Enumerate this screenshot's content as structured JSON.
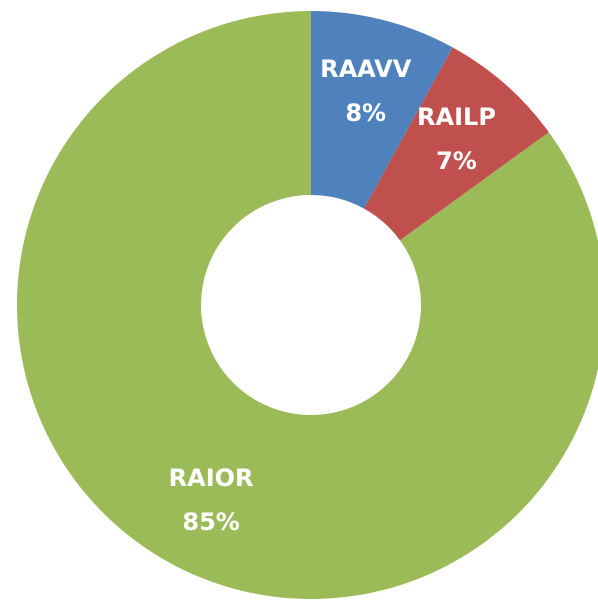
{
  "chart_data": {
    "type": "donut",
    "categories": [
      "RAAVV",
      "RAILP",
      "RAIOR"
    ],
    "values": [
      8,
      7,
      85
    ],
    "value_labels": [
      "8%",
      "7%",
      "85%"
    ],
    "colors": [
      "#4f81bd",
      "#c0504d",
      "#9bbb59"
    ]
  }
}
